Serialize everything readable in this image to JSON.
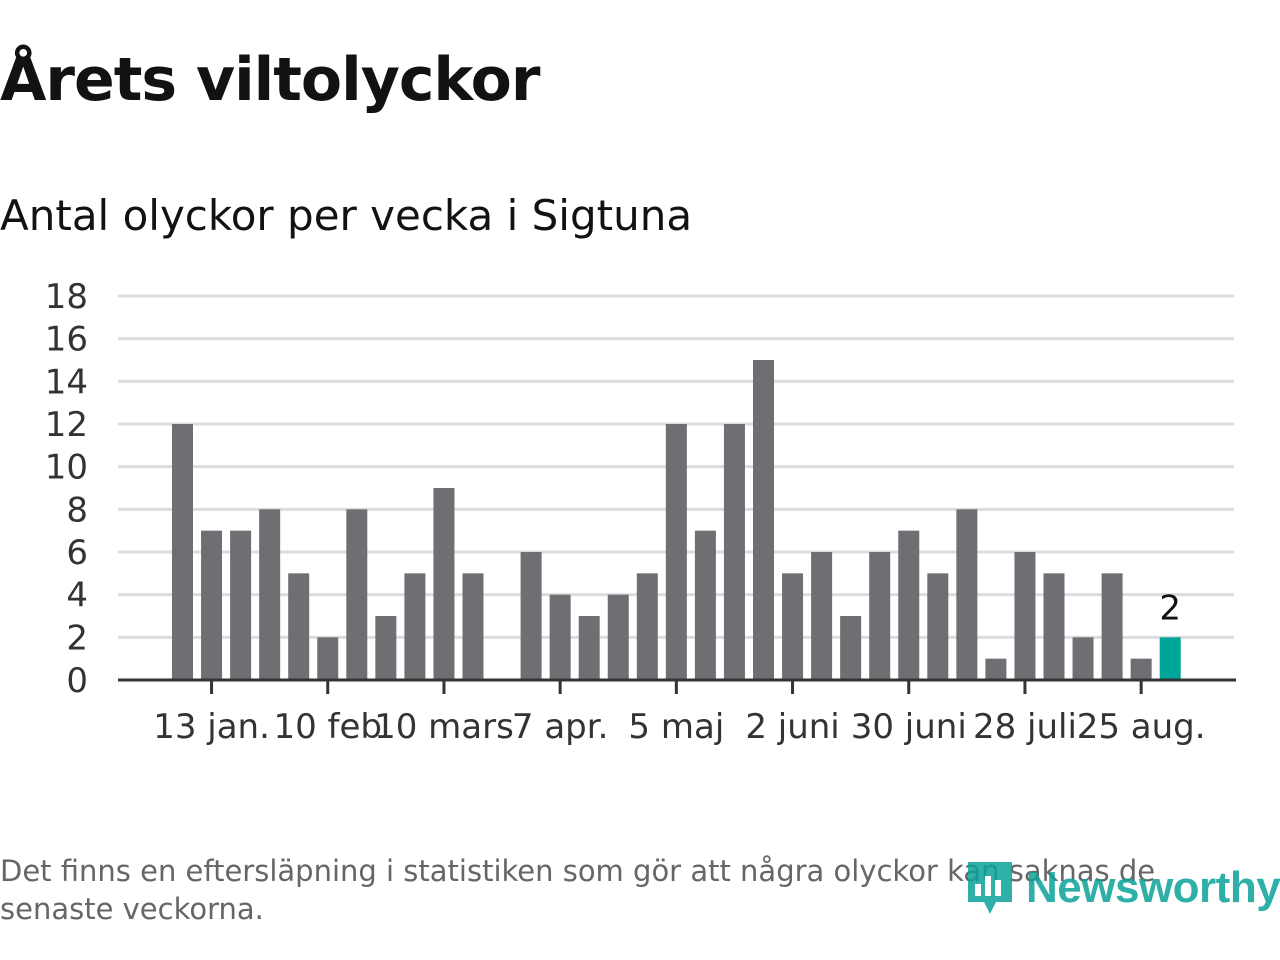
{
  "header": {
    "title": "Årets viltolyckor",
    "subtitle": "Antal olyckor per vecka i Sigtuna"
  },
  "footer": {
    "note": "Det finns en eftersläpning i statistiken som gör att några olyckor kan saknas de senaste veckorna.",
    "brand": "Newsworthy",
    "brand_icon": "newsworthy-logo-icon"
  },
  "colors": {
    "bar": "#6f6e73",
    "highlight": "#00a59a",
    "grid": "#dcdcdc",
    "axis": "#333333",
    "brand": "#0aa39a"
  },
  "chart_data": {
    "type": "bar",
    "title": "Årets viltolyckor",
    "subtitle": "Antal olyckor per vecka i Sigtuna",
    "xlabel": "",
    "ylabel": "",
    "ylim": [
      0,
      18
    ],
    "yticks": [
      0,
      2,
      4,
      6,
      8,
      10,
      12,
      14,
      16,
      18
    ],
    "grid": true,
    "legend": "none",
    "values": [
      12,
      7,
      7,
      8,
      5,
      2,
      8,
      3,
      5,
      9,
      5,
      0,
      6,
      4,
      3,
      4,
      5,
      12,
      7,
      12,
      15,
      5,
      6,
      3,
      6,
      7,
      5,
      8,
      1,
      6,
      5,
      2,
      5,
      1,
      2
    ],
    "highlight_index": 34,
    "data_labels": [
      {
        "index": 34,
        "text": "2"
      }
    ],
    "x_ticks": [
      {
        "index": 1,
        "label": "13 jan."
      },
      {
        "index": 5,
        "label": "10 feb"
      },
      {
        "index": 9,
        "label": "10 mars"
      },
      {
        "index": 13,
        "label": "7 apr."
      },
      {
        "index": 17,
        "label": "5 maj"
      },
      {
        "index": 21,
        "label": "2 juni"
      },
      {
        "index": 25,
        "label": "30 juni"
      },
      {
        "index": 29,
        "label": "28 juli"
      },
      {
        "index": 33,
        "label": "25 aug."
      }
    ]
  }
}
